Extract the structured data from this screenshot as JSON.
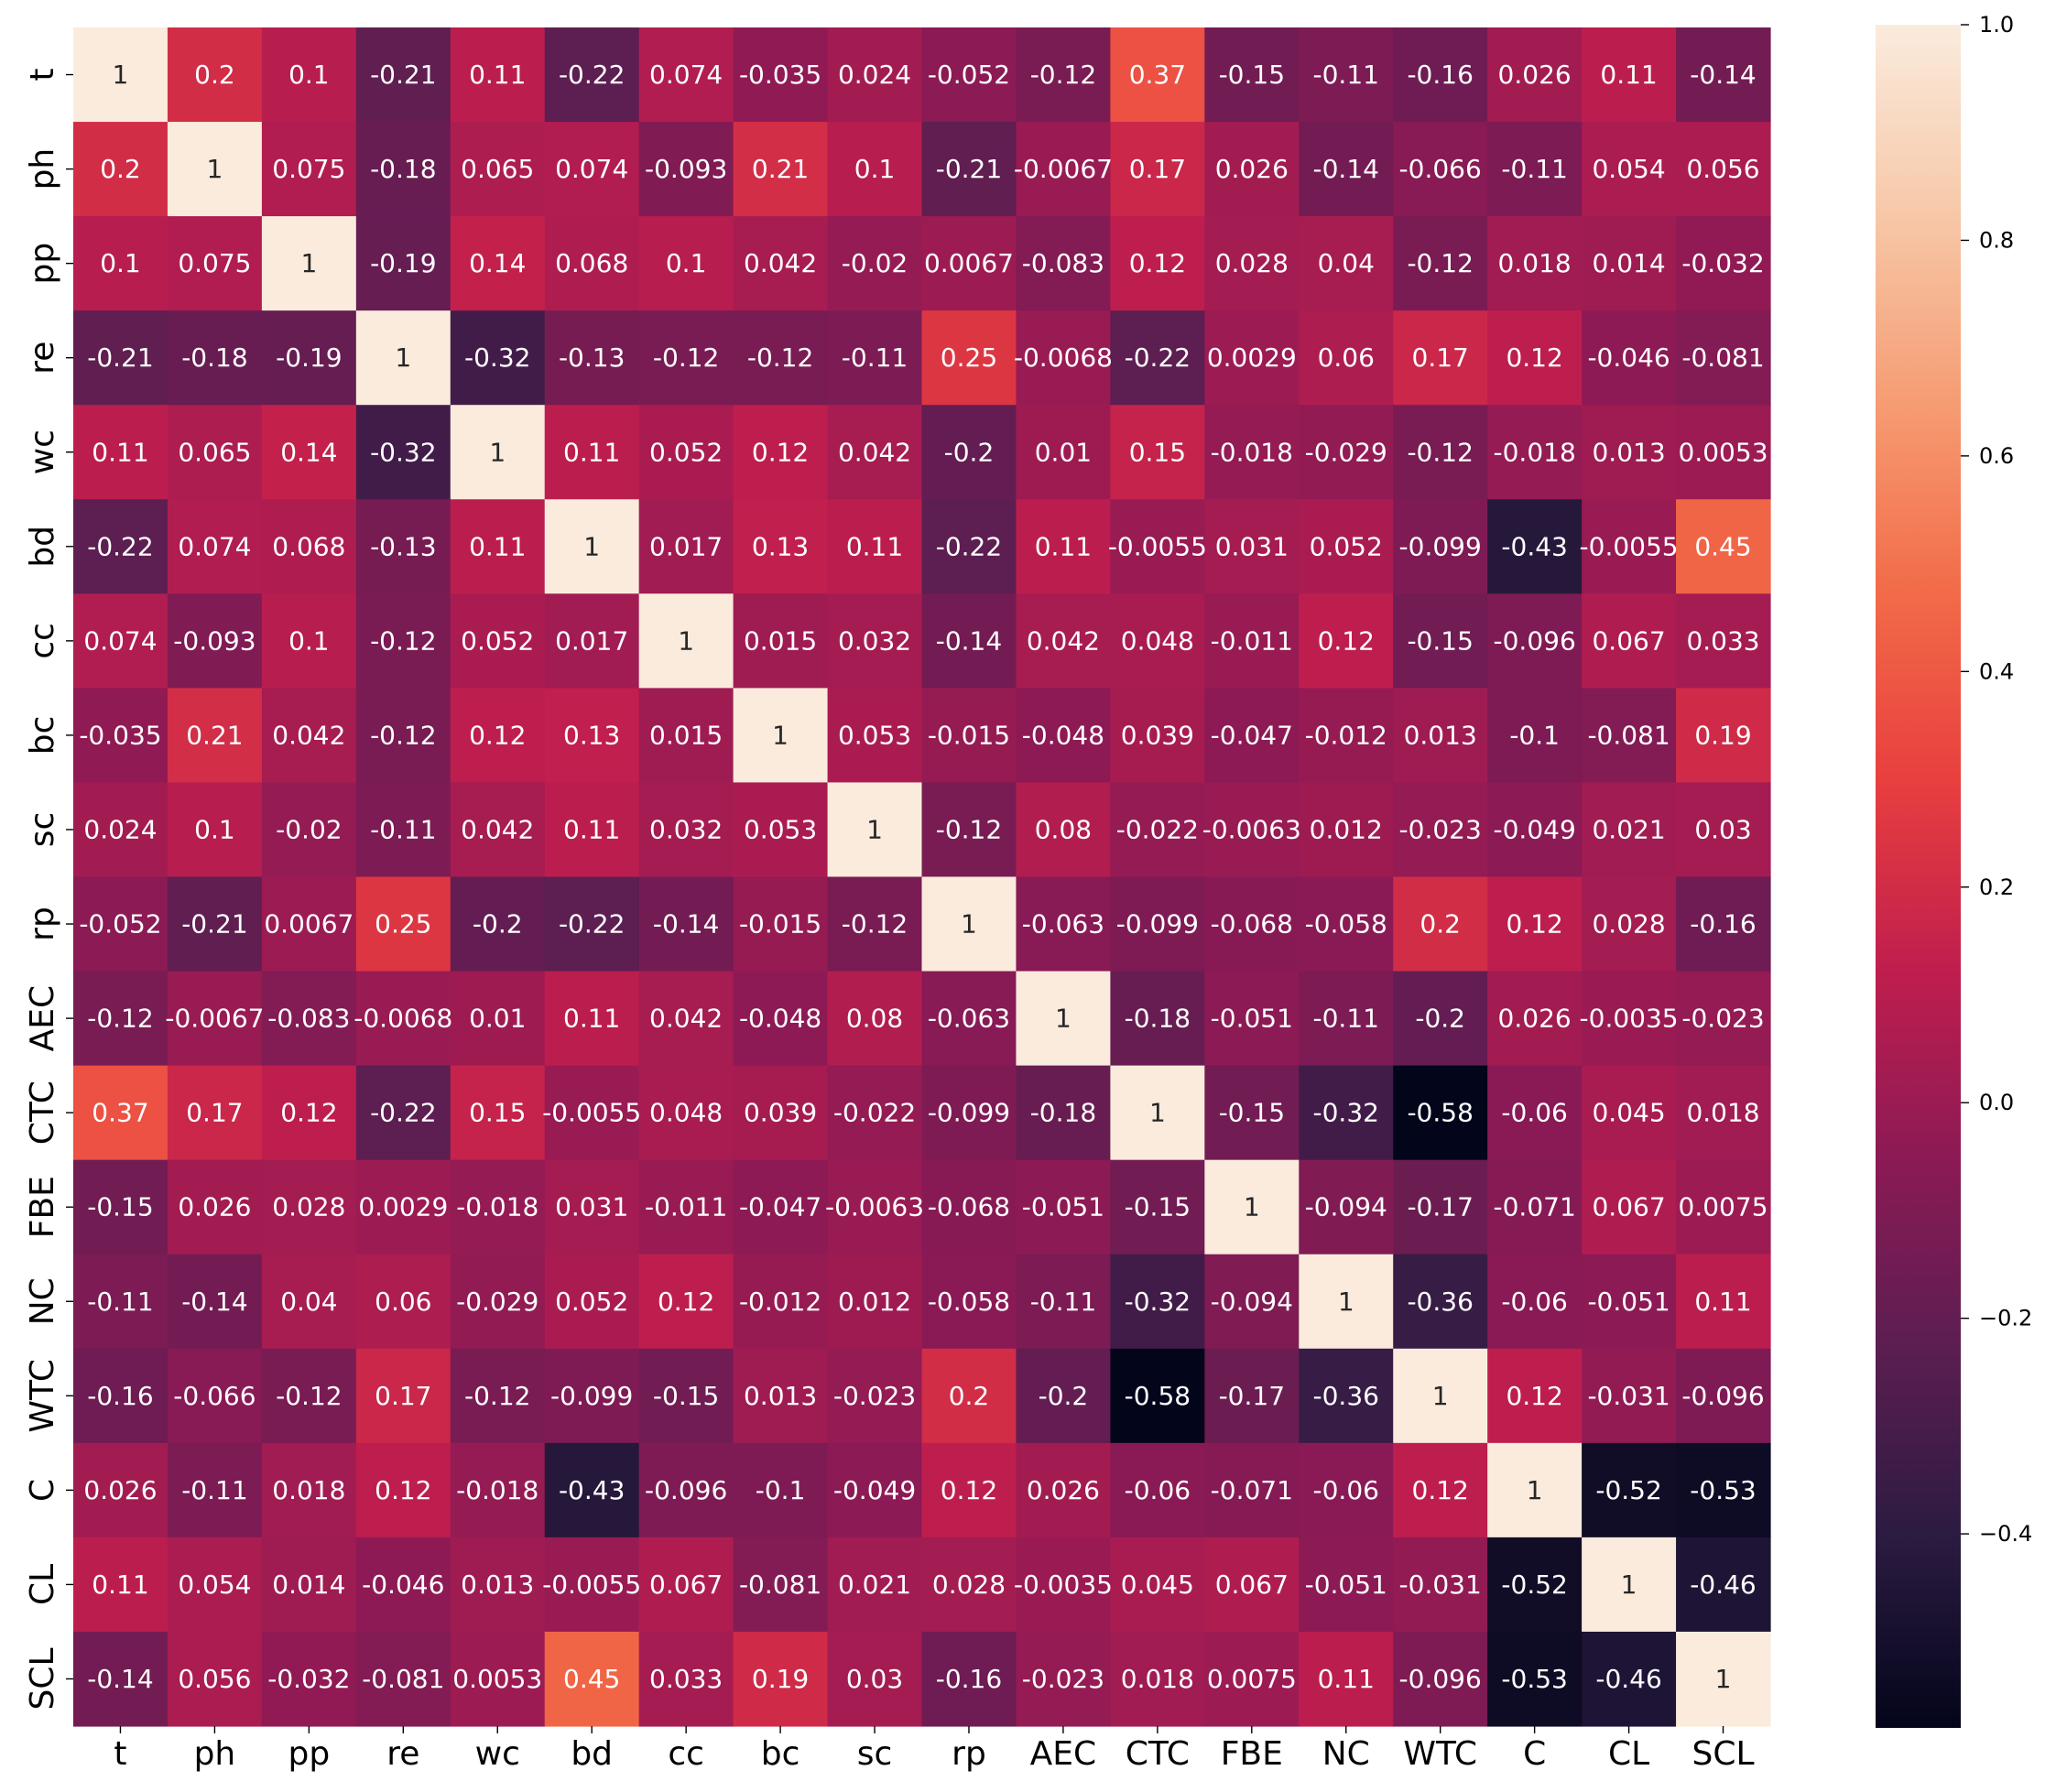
{
  "chart_data": {
    "type": "heatmap",
    "title": "",
    "xlabel": "",
    "ylabel": "",
    "x_labels": [
      "t",
      "ph",
      "pp",
      "re",
      "wc",
      "bd",
      "cc",
      "bc",
      "sc",
      "rp",
      "AEC",
      "CTC",
      "FBE",
      "NC",
      "WTC",
      "C",
      "CL",
      "SCL"
    ],
    "y_labels": [
      "t",
      "ph",
      "pp",
      "re",
      "wc",
      "bd",
      "cc",
      "bc",
      "sc",
      "rp",
      "AEC",
      "CTC",
      "FBE",
      "NC",
      "WTC",
      "C",
      "CL",
      "SCL"
    ],
    "values": [
      [
        1,
        0.2,
        0.1,
        -0.21,
        0.11,
        -0.22,
        0.074,
        -0.035,
        0.024,
        -0.052,
        -0.12,
        0.37,
        -0.15,
        -0.11,
        -0.16,
        0.026,
        0.11,
        -0.14
      ],
      [
        0.2,
        1,
        0.075,
        -0.18,
        0.065,
        0.074,
        -0.093,
        0.21,
        0.1,
        -0.21,
        -0.0067,
        0.17,
        0.026,
        -0.14,
        -0.066,
        -0.11,
        0.054,
        0.056
      ],
      [
        0.1,
        0.075,
        1,
        -0.19,
        0.14,
        0.068,
        0.1,
        0.042,
        -0.02,
        0.0067,
        -0.083,
        0.12,
        0.028,
        0.04,
        -0.12,
        0.018,
        0.014,
        -0.032
      ],
      [
        -0.21,
        -0.18,
        -0.19,
        1,
        -0.32,
        -0.13,
        -0.12,
        -0.12,
        -0.11,
        0.25,
        -0.0068,
        -0.22,
        0.0029,
        0.06,
        0.17,
        0.12,
        -0.046,
        -0.081
      ],
      [
        0.11,
        0.065,
        0.14,
        -0.32,
        1,
        0.11,
        0.052,
        0.12,
        0.042,
        -0.2,
        0.01,
        0.15,
        -0.018,
        -0.029,
        -0.12,
        -0.018,
        0.013,
        0.0053
      ],
      [
        -0.22,
        0.074,
        0.068,
        -0.13,
        0.11,
        1,
        0.017,
        0.13,
        0.11,
        -0.22,
        0.11,
        -0.0055,
        0.031,
        0.052,
        -0.099,
        -0.43,
        -0.0055,
        0.45
      ],
      [
        0.074,
        -0.093,
        0.1,
        -0.12,
        0.052,
        0.017,
        1,
        0.015,
        0.032,
        -0.14,
        0.042,
        0.048,
        -0.011,
        0.12,
        -0.15,
        -0.096,
        0.067,
        0.033
      ],
      [
        -0.035,
        0.21,
        0.042,
        -0.12,
        0.12,
        0.13,
        0.015,
        1,
        0.053,
        -0.015,
        -0.048,
        0.039,
        -0.047,
        -0.012,
        0.013,
        -0.1,
        -0.081,
        0.19
      ],
      [
        0.024,
        0.1,
        -0.02,
        -0.11,
        0.042,
        0.11,
        0.032,
        0.053,
        1,
        -0.12,
        0.08,
        -0.022,
        -0.0063,
        0.012,
        -0.023,
        -0.049,
        0.021,
        0.03
      ],
      [
        -0.052,
        -0.21,
        0.0067,
        0.25,
        -0.2,
        -0.22,
        -0.14,
        -0.015,
        -0.12,
        1,
        -0.063,
        -0.099,
        -0.068,
        -0.058,
        0.2,
        0.12,
        0.028,
        -0.16
      ],
      [
        -0.12,
        -0.0067,
        -0.083,
        -0.0068,
        0.01,
        0.11,
        0.042,
        -0.048,
        0.08,
        -0.063,
        1,
        -0.18,
        -0.051,
        -0.11,
        -0.2,
        0.026,
        -0.0035,
        -0.023
      ],
      [
        0.37,
        0.17,
        0.12,
        -0.22,
        0.15,
        -0.0055,
        0.048,
        0.039,
        -0.022,
        -0.099,
        -0.18,
        1,
        -0.15,
        -0.32,
        -0.58,
        -0.06,
        0.045,
        0.018
      ],
      [
        -0.15,
        0.026,
        0.028,
        0.0029,
        -0.018,
        0.031,
        -0.011,
        -0.047,
        -0.0063,
        -0.068,
        -0.051,
        -0.15,
        1,
        -0.094,
        -0.17,
        -0.071,
        0.067,
        0.0075
      ],
      [
        -0.11,
        -0.14,
        0.04,
        0.06,
        -0.029,
        0.052,
        0.12,
        -0.012,
        0.012,
        -0.058,
        -0.11,
        -0.32,
        -0.094,
        1,
        -0.36,
        -0.06,
        -0.051,
        0.11
      ],
      [
        -0.16,
        -0.066,
        -0.12,
        0.17,
        -0.12,
        -0.099,
        -0.15,
        0.013,
        -0.023,
        0.2,
        -0.2,
        -0.58,
        -0.17,
        -0.36,
        1,
        0.12,
        -0.031,
        -0.096
      ],
      [
        0.026,
        -0.11,
        0.018,
        0.12,
        -0.018,
        -0.43,
        -0.096,
        -0.1,
        -0.049,
        0.12,
        0.026,
        -0.06,
        -0.071,
        -0.06,
        0.12,
        1,
        -0.52,
        -0.53
      ],
      [
        0.11,
        0.054,
        0.014,
        -0.046,
        0.013,
        -0.0055,
        0.067,
        -0.081,
        0.021,
        0.028,
        -0.0035,
        0.045,
        0.067,
        -0.051,
        -0.031,
        -0.52,
        1,
        -0.46
      ],
      [
        -0.14,
        0.056,
        -0.032,
        -0.081,
        0.0053,
        0.45,
        0.033,
        0.19,
        0.03,
        -0.16,
        -0.023,
        0.018,
        0.0075,
        0.11,
        -0.096,
        -0.53,
        -0.46,
        1
      ]
    ],
    "colorbar": {
      "min": -0.58,
      "max": 1.0,
      "ticks": [
        1.0,
        0.8,
        0.6,
        0.4,
        0.2,
        0.0,
        -0.2,
        -0.4
      ],
      "tick_labels": [
        "1.0",
        "0.8",
        "0.6",
        "0.4",
        "0.2",
        "0.0",
        "−0.2",
        "−0.4"
      ]
    },
    "colormap": "rocket",
    "colormap_stops": [
      "#03051a",
      "#2b1b41",
      "#5b1e51",
      "#8b1a55",
      "#bf1e4e",
      "#e83f3f",
      "#f26b48",
      "#f69c73",
      "#f7c8a8",
      "#faebdd"
    ],
    "annotate": true,
    "grid": false
  }
}
